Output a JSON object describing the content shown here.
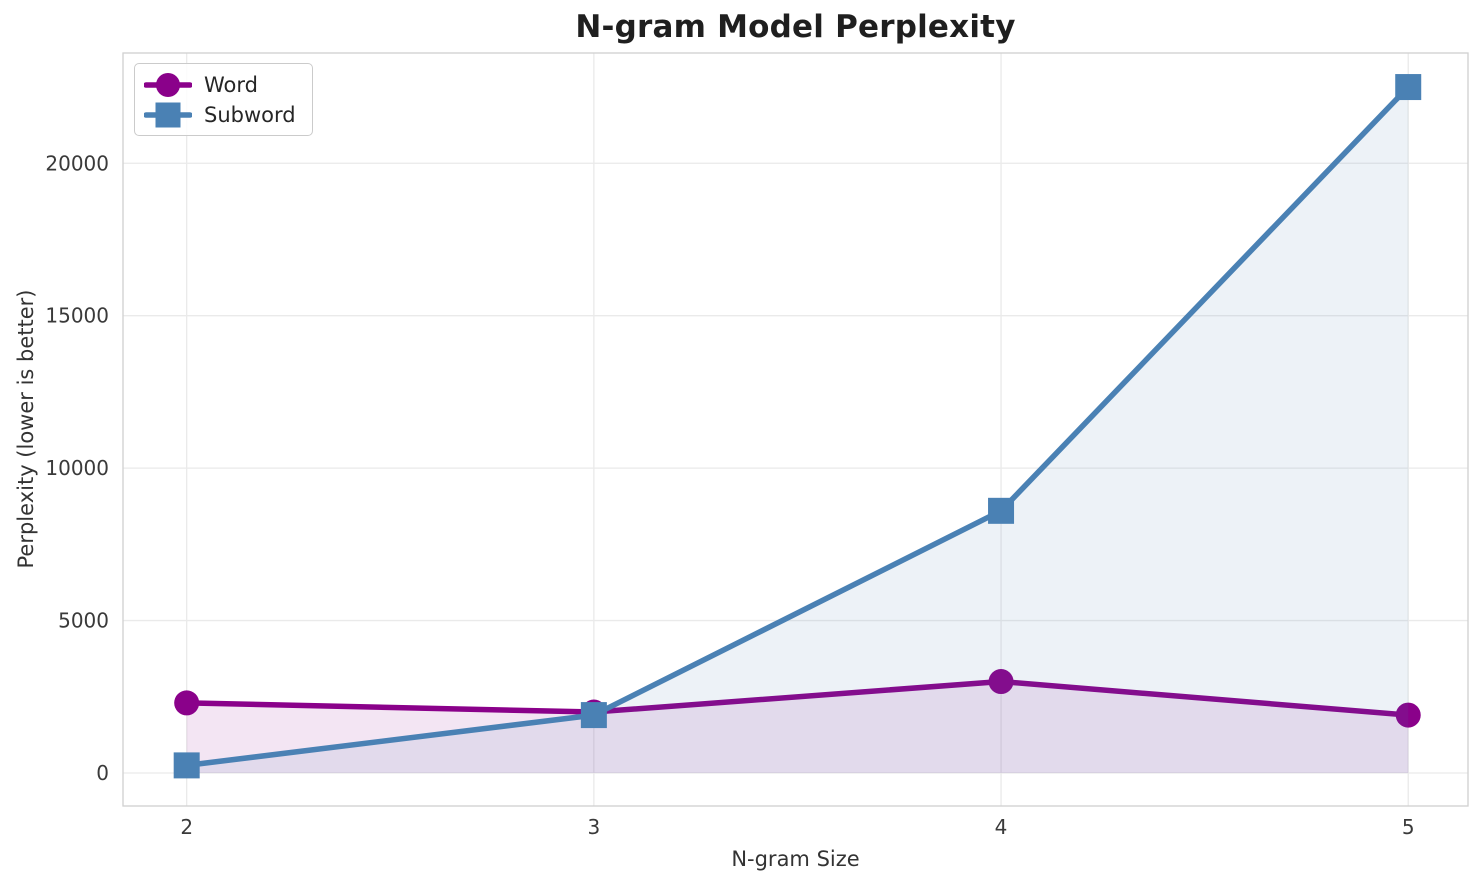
{
  "chart_data": {
    "type": "line",
    "title": "N-gram Model Perplexity",
    "xlabel": "N-gram Size",
    "ylabel": "Perplexity (lower is better)",
    "x": [
      2,
      3,
      4,
      5
    ],
    "series": [
      {
        "name": "Word",
        "marker": "circle",
        "color": "#8A018A",
        "values": [
          2300,
          2000,
          3000,
          1900
        ],
        "fill_to_zero": true,
        "fill_alpha": 0.1
      },
      {
        "name": "Subword",
        "marker": "square",
        "color": "#4A81B4",
        "values": [
          250,
          1900,
          8600,
          22500
        ],
        "fill_to_zero": true,
        "fill_alpha": 0.1
      }
    ],
    "xticks": [
      2,
      3,
      4,
      5
    ],
    "yticks": [
      0,
      5000,
      10000,
      15000,
      20000
    ],
    "xlim": [
      1.8436,
      5.1468
    ],
    "ylim": [
      -1082,
      23617
    ],
    "grid": true,
    "legend_position": "upper-left"
  },
  "style": {
    "background": "#ffffff",
    "grid_color": "#EAEAEA",
    "spine_color": "#D0D0D0",
    "tick_label_color": "#3A3A3A",
    "title_color": "#1f1f1f"
  }
}
